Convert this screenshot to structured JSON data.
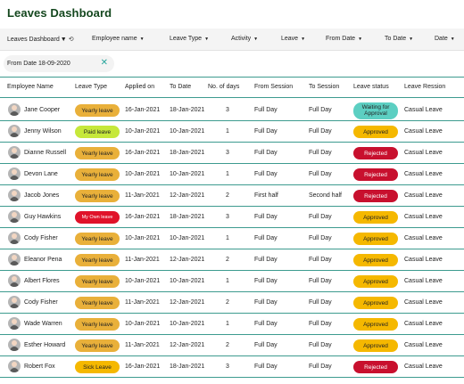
{
  "title": "Leaves Dashboard",
  "filters": {
    "dashboard": "Leaves Dashboard",
    "employee": "Employee name",
    "leave_type": "Leave Type",
    "activity": "Activity",
    "leave": "Leave",
    "from_date": "From Date",
    "to_date": "To Date",
    "date": "Date"
  },
  "active_filter": "From Date 18-09-2020",
  "columns": [
    "Employee Name",
    "Leave Type",
    "Applied on",
    "To Date",
    "No. of days",
    "From Session",
    "To Session",
    "Leave status",
    "Leave Ression"
  ],
  "colors": {
    "title": "#14471e",
    "divider": "#3d9b8f",
    "yearly": "#e9b03a",
    "paid": "#c6e83a",
    "sick": "#f5b800",
    "own": "#e0132a",
    "waiting": "#5ccfc2",
    "approved": "#f5b800",
    "rejected": "#c8102e"
  },
  "rows": [
    {
      "name": "Jane Cooper",
      "type": "Yearly leave",
      "type_key": "yearly",
      "applied": "16-Jan-2021",
      "to": "18-Jan-2021",
      "days": "3",
      "from_session": "Full Day",
      "to_session": "Full Day",
      "status": "Waiting for Approval",
      "status_key": "waiting",
      "reason": "Casual Leave"
    },
    {
      "name": "Jenny Wilson",
      "type": "Paid leave",
      "type_key": "paid",
      "applied": "10-Jan-2021",
      "to": "10-Jan-2021",
      "days": "1",
      "from_session": "Full Day",
      "to_session": "Full Day",
      "status": "Approved",
      "status_key": "approved",
      "reason": "Casual Leave"
    },
    {
      "name": "Dianne Russell",
      "type": "Yearly leave",
      "type_key": "yearly",
      "applied": "16-Jan-2021",
      "to": "18-Jan-2021",
      "days": "3",
      "from_session": "Full Day",
      "to_session": "Full Day",
      "status": "Rejected",
      "status_key": "rejected",
      "reason": "Casual Leave"
    },
    {
      "name": "Devon Lane",
      "type": "Yearly leave",
      "type_key": "yearly",
      "applied": "10-Jan-2021",
      "to": "10-Jan-2021",
      "days": "1",
      "from_session": "Full Day",
      "to_session": "Full Day",
      "status": "Rejected",
      "status_key": "rejected",
      "reason": "Casual Leave"
    },
    {
      "name": "Jacob Jones",
      "type": "Yearly leave",
      "type_key": "yearly",
      "applied": "11-Jan-2021",
      "to": "12-Jan-2021",
      "days": "2",
      "from_session": "First half",
      "to_session": "Second half",
      "status": "Rejected",
      "status_key": "rejected",
      "reason": "Casual Leave"
    },
    {
      "name": "Guy Hawkins",
      "type": "My Own leave",
      "type_key": "own",
      "applied": "16-Jan-2021",
      "to": "18-Jan-2021",
      "days": "3",
      "from_session": "Full Day",
      "to_session": "Full Day",
      "status": "Approved",
      "status_key": "approved",
      "reason": "Casual Leave"
    },
    {
      "name": "Cody Fisher",
      "type": "Yearly leave",
      "type_key": "yearly",
      "applied": "10-Jan-2021",
      "to": "10-Jan-2021",
      "days": "1",
      "from_session": "Full Day",
      "to_session": "Full Day",
      "status": "Approved",
      "status_key": "approved",
      "reason": "Casual Leave"
    },
    {
      "name": "Eleanor Pena",
      "type": "Yearly leave",
      "type_key": "yearly",
      "applied": "11-Jan-2021",
      "to": "12-Jan-2021",
      "days": "2",
      "from_session": "Full Day",
      "to_session": "Full Day",
      "status": "Approved",
      "status_key": "approved",
      "reason": "Casual Leave"
    },
    {
      "name": "Albert Flores",
      "type": "Yearly leave",
      "type_key": "yearly",
      "applied": "10-Jan-2021",
      "to": "10-Jan-2021",
      "days": "1",
      "from_session": "Full Day",
      "to_session": "Full Day",
      "status": "Approved",
      "status_key": "approved",
      "reason": "Casual Leave"
    },
    {
      "name": "Cody Fisher",
      "type": "Yearly leave",
      "type_key": "yearly",
      "applied": "11-Jan-2021",
      "to": "12-Jan-2021",
      "days": "2",
      "from_session": "Full Day",
      "to_session": "Full Day",
      "status": "Approved",
      "status_key": "approved",
      "reason": "Casual Leave"
    },
    {
      "name": "Wade Warren",
      "type": "Yearly leave",
      "type_key": "yearly",
      "applied": "10-Jan-2021",
      "to": "10-Jan-2021",
      "days": "1",
      "from_session": "Full Day",
      "to_session": "Full Day",
      "status": "Approved",
      "status_key": "approved",
      "reason": "Casual Leave"
    },
    {
      "name": "Esther Howard",
      "type": "Yearly leave",
      "type_key": "yearly",
      "applied": "11-Jan-2021",
      "to": "12-Jan-2021",
      "days": "2",
      "from_session": "Full Day",
      "to_session": "Full Day",
      "status": "Approved",
      "status_key": "approved",
      "reason": "Casual Leave"
    },
    {
      "name": "Robert Fox",
      "type": "Sick Leave",
      "type_key": "sick",
      "applied": "16-Jan-2021",
      "to": "18-Jan-2021",
      "days": "3",
      "from_session": "Full Day",
      "to_session": "Full Day",
      "status": "Rejected",
      "status_key": "rejected",
      "reason": "Casual Leave"
    }
  ]
}
